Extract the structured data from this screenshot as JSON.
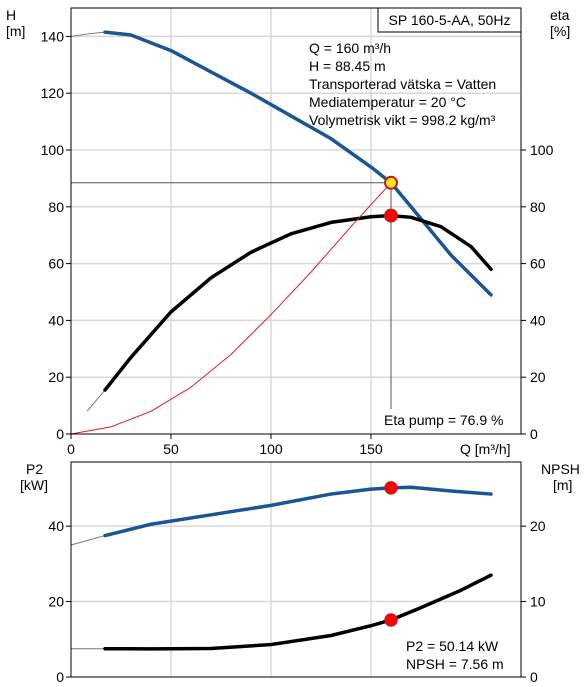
{
  "chart_data": [
    {
      "type": "line",
      "title": "SP 160-5-AA, 50Hz",
      "x_axis": {
        "label": "Q [m³/h]",
        "range": [
          0,
          225
        ],
        "ticks": [
          0,
          50,
          100,
          150
        ]
      },
      "y_left": {
        "label_line1": "H",
        "label_line2": "[m]",
        "range": [
          0,
          150
        ],
        "ticks": [
          0,
          20,
          40,
          60,
          80,
          100,
          120,
          140
        ]
      },
      "y_right": {
        "label_line1": "eta",
        "label_line2": "[%]",
        "range": [
          0,
          150
        ],
        "ticks": [
          0,
          20,
          40,
          60,
          80,
          100
        ]
      },
      "info_lines": [
        "Q = 160 m³/h",
        "H = 88.45 m",
        "Transporterad vätska = Vatten",
        "Mediatemperatur = 20 °C",
        "Volymetrisk vikt = 998.2 kg/m³"
      ],
      "annotation": "Eta pump = 76.9 %",
      "series": [
        {
          "key": "head",
          "color": "#1a5694",
          "x": [
            0,
            10,
            17,
            30,
            50,
            70,
            90,
            110,
            130,
            150,
            160,
            170,
            190,
            210
          ],
          "y": [
            140,
            141,
            141.5,
            140.5,
            135,
            127.5,
            120,
            112,
            104,
            94,
            88.45,
            80,
            63,
            49
          ],
          "dashed_until": 17
        },
        {
          "key": "eta",
          "color": "#000000",
          "x": [
            8,
            17,
            30,
            50,
            70,
            90,
            110,
            130,
            150,
            160,
            170,
            185,
            200,
            210
          ],
          "y": [
            8,
            15.5,
            27,
            43,
            55,
            64,
            70.5,
            74.5,
            76.5,
            76.9,
            76.3,
            73,
            66,
            58
          ],
          "dashed_until": 17
        },
        {
          "key": "system",
          "color": "#e01e1e",
          "x": [
            0,
            20,
            40,
            60,
            80,
            100,
            120,
            140,
            160
          ],
          "y": [
            0,
            2.5,
            8,
            16.5,
            28,
            42,
            57,
            73,
            88.45
          ]
        }
      ],
      "operating_points": [
        {
          "x": 160,
          "y": 88.45,
          "fill": "#f5e61e",
          "stroke": "#c61a1a"
        },
        {
          "x": 160,
          "y": 76.9,
          "fill": "#ff0000",
          "stroke": "#c61a1a"
        }
      ],
      "crosshair": {
        "x": 160,
        "y": 88.45
      }
    },
    {
      "type": "line",
      "x_axis": {
        "range": [
          0,
          225
        ],
        "ticks": [
          0,
          50,
          100,
          150
        ]
      },
      "y_left": {
        "label_line1": "P2",
        "label_line2": "[kW]",
        "range": [
          0,
          57
        ],
        "ticks": [
          0,
          20,
          40
        ]
      },
      "y_right": {
        "label_line1": "NPSH",
        "label_line2": "[m]",
        "range": [
          0,
          28.5
        ],
        "ticks": [
          0,
          10,
          20
        ]
      },
      "annotation_lines": [
        "P2 = 50.14 kW",
        "NPSH = 7.56 m"
      ],
      "series": [
        {
          "key": "p2",
          "color": "#1a5694",
          "axis": "left",
          "x": [
            0,
            17,
            40,
            70,
            100,
            130,
            150,
            160,
            170,
            190,
            210
          ],
          "y": [
            35,
            37.5,
            40.5,
            43,
            45.5,
            48.5,
            49.8,
            50.14,
            50.3,
            49.3,
            48.5
          ],
          "dashed_until": 17
        },
        {
          "key": "npsh",
          "color": "#000000",
          "axis": "right",
          "x": [
            0,
            17,
            40,
            70,
            100,
            130,
            150,
            160,
            175,
            195,
            210
          ],
          "y": [
            3.75,
            3.75,
            3.73,
            3.78,
            4.3,
            5.5,
            6.8,
            7.56,
            9.2,
            11.5,
            13.5
          ],
          "dashed_until": 17
        }
      ],
      "operating_points": [
        {
          "x": 160,
          "y": 50.14,
          "axis": "left",
          "fill": "#ff0000",
          "stroke": "#c61a1a"
        },
        {
          "x": 160,
          "y": 7.56,
          "axis": "right",
          "fill": "#ff0000",
          "stroke": "#c61a1a"
        }
      ]
    }
  ]
}
